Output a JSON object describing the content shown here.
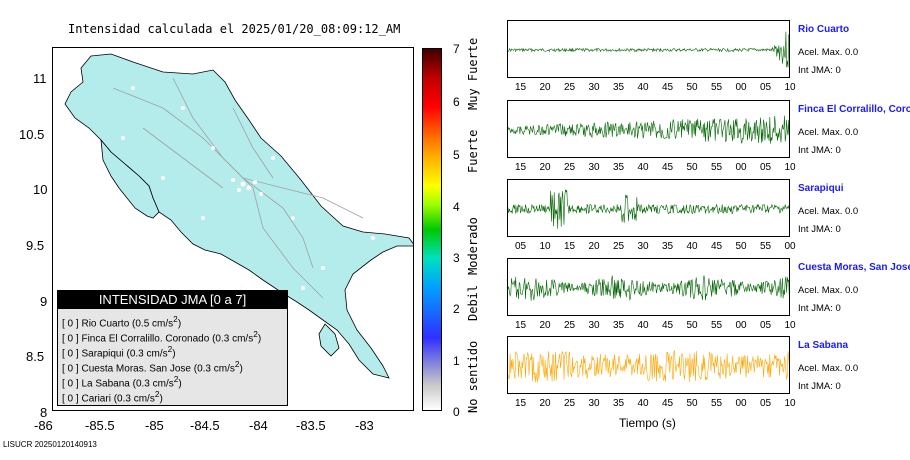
{
  "title": "Intensidad calculada el 2025/01/20_08:09:12_AM",
  "map": {
    "lon_ticks": [
      "-86",
      "-85.5",
      "-85",
      "-84.5",
      "-84",
      "-83.5",
      "-83"
    ],
    "lat_ticks": [
      "11",
      "10.5",
      "10",
      "9.5",
      "9",
      "8.5",
      "8"
    ],
    "land_color": "#b4ecec"
  },
  "legend": {
    "header": "INTENSIDAD JMA [0 a 7]",
    "rows": [
      {
        "jma": "[ 0 ]",
        "label": "Rio Cuarto (0.5 cm/s",
        "sup": "2",
        "close": ")"
      },
      {
        "jma": "[ 0 ]",
        "label": "Finca El Corralillo. Coronado (0.3 cm/s",
        "sup": "2",
        "close": ")"
      },
      {
        "jma": "[ 0 ]",
        "label": "Sarapiqui (0.3 cm/s",
        "sup": "2",
        "close": ")"
      },
      {
        "jma": "[ 0 ]",
        "label": "Cuesta Moras. San Jose (0.3 cm/s",
        "sup": "2",
        "close": ")"
      },
      {
        "jma": "[ 0 ]",
        "label": "La Sabana (0.3 cm/s",
        "sup": "2",
        "close": ")"
      },
      {
        "jma": "[ 0 ]",
        "label": "Cariari (0.3 cm/s",
        "sup": "2",
        "close": ")"
      }
    ]
  },
  "colorbar": {
    "levels": [
      "7",
      "6",
      "5",
      "4",
      "3",
      "2",
      "1",
      "0"
    ],
    "words": [
      "Muy Fuerte",
      "Fuerte",
      "Moderado",
      "Debil",
      "No sentido"
    ]
  },
  "stations": [
    {
      "name": "Rio Cuarto",
      "accel": "Acel. Max. 0.0",
      "jma": "Int JMA: 0",
      "ticks": [
        "15",
        "20",
        "25",
        "30",
        "35",
        "40",
        "45",
        "50",
        "55",
        "00",
        "05",
        "10"
      ],
      "color": "#006400"
    },
    {
      "name": "Finca El Corralillo, Coronado",
      "accel": "Acel. Max. 0.0",
      "jma": "Int JMA: 0",
      "ticks": [
        "15",
        "20",
        "25",
        "30",
        "35",
        "40",
        "45",
        "50",
        "55",
        "00",
        "05",
        "10"
      ],
      "color": "#006400"
    },
    {
      "name": "Sarapiqui",
      "accel": "Acel. Max. 0.0",
      "jma": "Int JMA: 0",
      "ticks": [
        "05",
        "10",
        "15",
        "20",
        "25",
        "30",
        "35",
        "40",
        "45",
        "50",
        "55",
        "00"
      ],
      "color": "#006400"
    },
    {
      "name": "Cuesta Moras, San Jose",
      "accel": "Acel. Max. 0.0",
      "jma": "Int JMA: 0",
      "ticks": [
        "15",
        "20",
        "25",
        "30",
        "35",
        "40",
        "45",
        "50",
        "55",
        "00",
        "05",
        "10"
      ],
      "color": "#006400"
    },
    {
      "name": "La Sabana",
      "accel": "Acel. Max. 0.0",
      "jma": "Int JMA: 0",
      "ticks": [
        "15",
        "20",
        "25",
        "30",
        "35",
        "40",
        "45",
        "50",
        "55",
        "00",
        "05",
        "10"
      ],
      "color": "#ffa500"
    }
  ],
  "xlabel": "Tiempo (s)",
  "footer": "LISUCR 20250120140913"
}
